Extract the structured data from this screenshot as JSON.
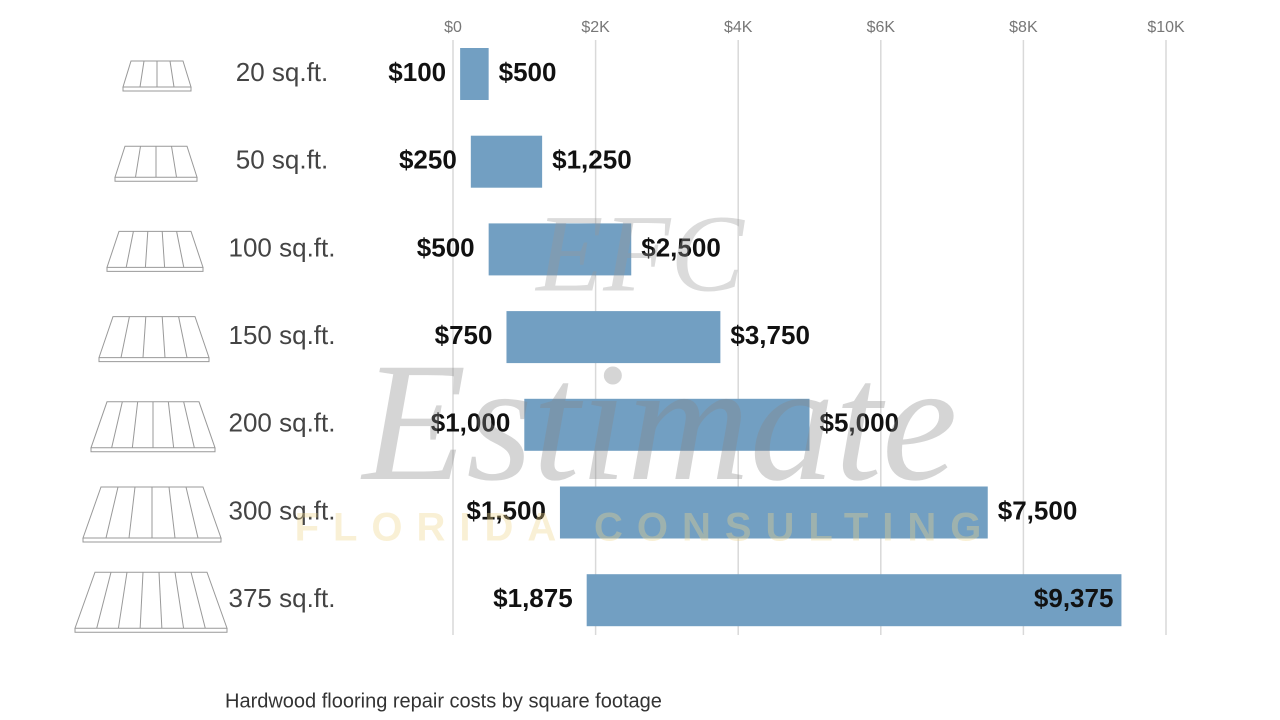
{
  "chart_data": {
    "type": "range_bar",
    "title": "Hardwood flooring repair costs by square footage",
    "categories": [
      "20 sq.ft.",
      "50 sq.ft.",
      "100 sq.ft.",
      "150 sq.ft.",
      "200 sq.ft.",
      "300 sq.ft.",
      "375 sq.ft."
    ],
    "values": [
      [
        100,
        500
      ],
      [
        250,
        1250
      ],
      [
        500,
        2500
      ],
      [
        750,
        3750
      ],
      [
        1000,
        5000
      ],
      [
        1500,
        7500
      ],
      [
        1875,
        9375
      ]
    ],
    "value_labels": [
      [
        "$100",
        "$500"
      ],
      [
        "$250",
        "$1,250"
      ],
      [
        "$500",
        "$2,500"
      ],
      [
        "$750",
        "$3,750"
      ],
      [
        "$1,000",
        "$5,000"
      ],
      [
        "$1,500",
        "$7,500"
      ],
      [
        "$1,875",
        "$9,375"
      ]
    ],
    "color": "#729fc2",
    "xlim": [
      0,
      10000
    ],
    "xticks": [
      {
        "value": 0,
        "label": "$0"
      },
      {
        "value": 2000,
        "label": "$2K"
      },
      {
        "value": 4000,
        "label": "$4K"
      },
      {
        "value": 6000,
        "label": "$6K"
      },
      {
        "value": 8000,
        "label": "$8K"
      },
      {
        "value": 10000,
        "label": "$10K"
      }
    ],
    "grid": true,
    "watermark": {
      "logo": "EFC",
      "name": "Estimate",
      "tagline": "FLORIDA CONSULTING"
    }
  }
}
